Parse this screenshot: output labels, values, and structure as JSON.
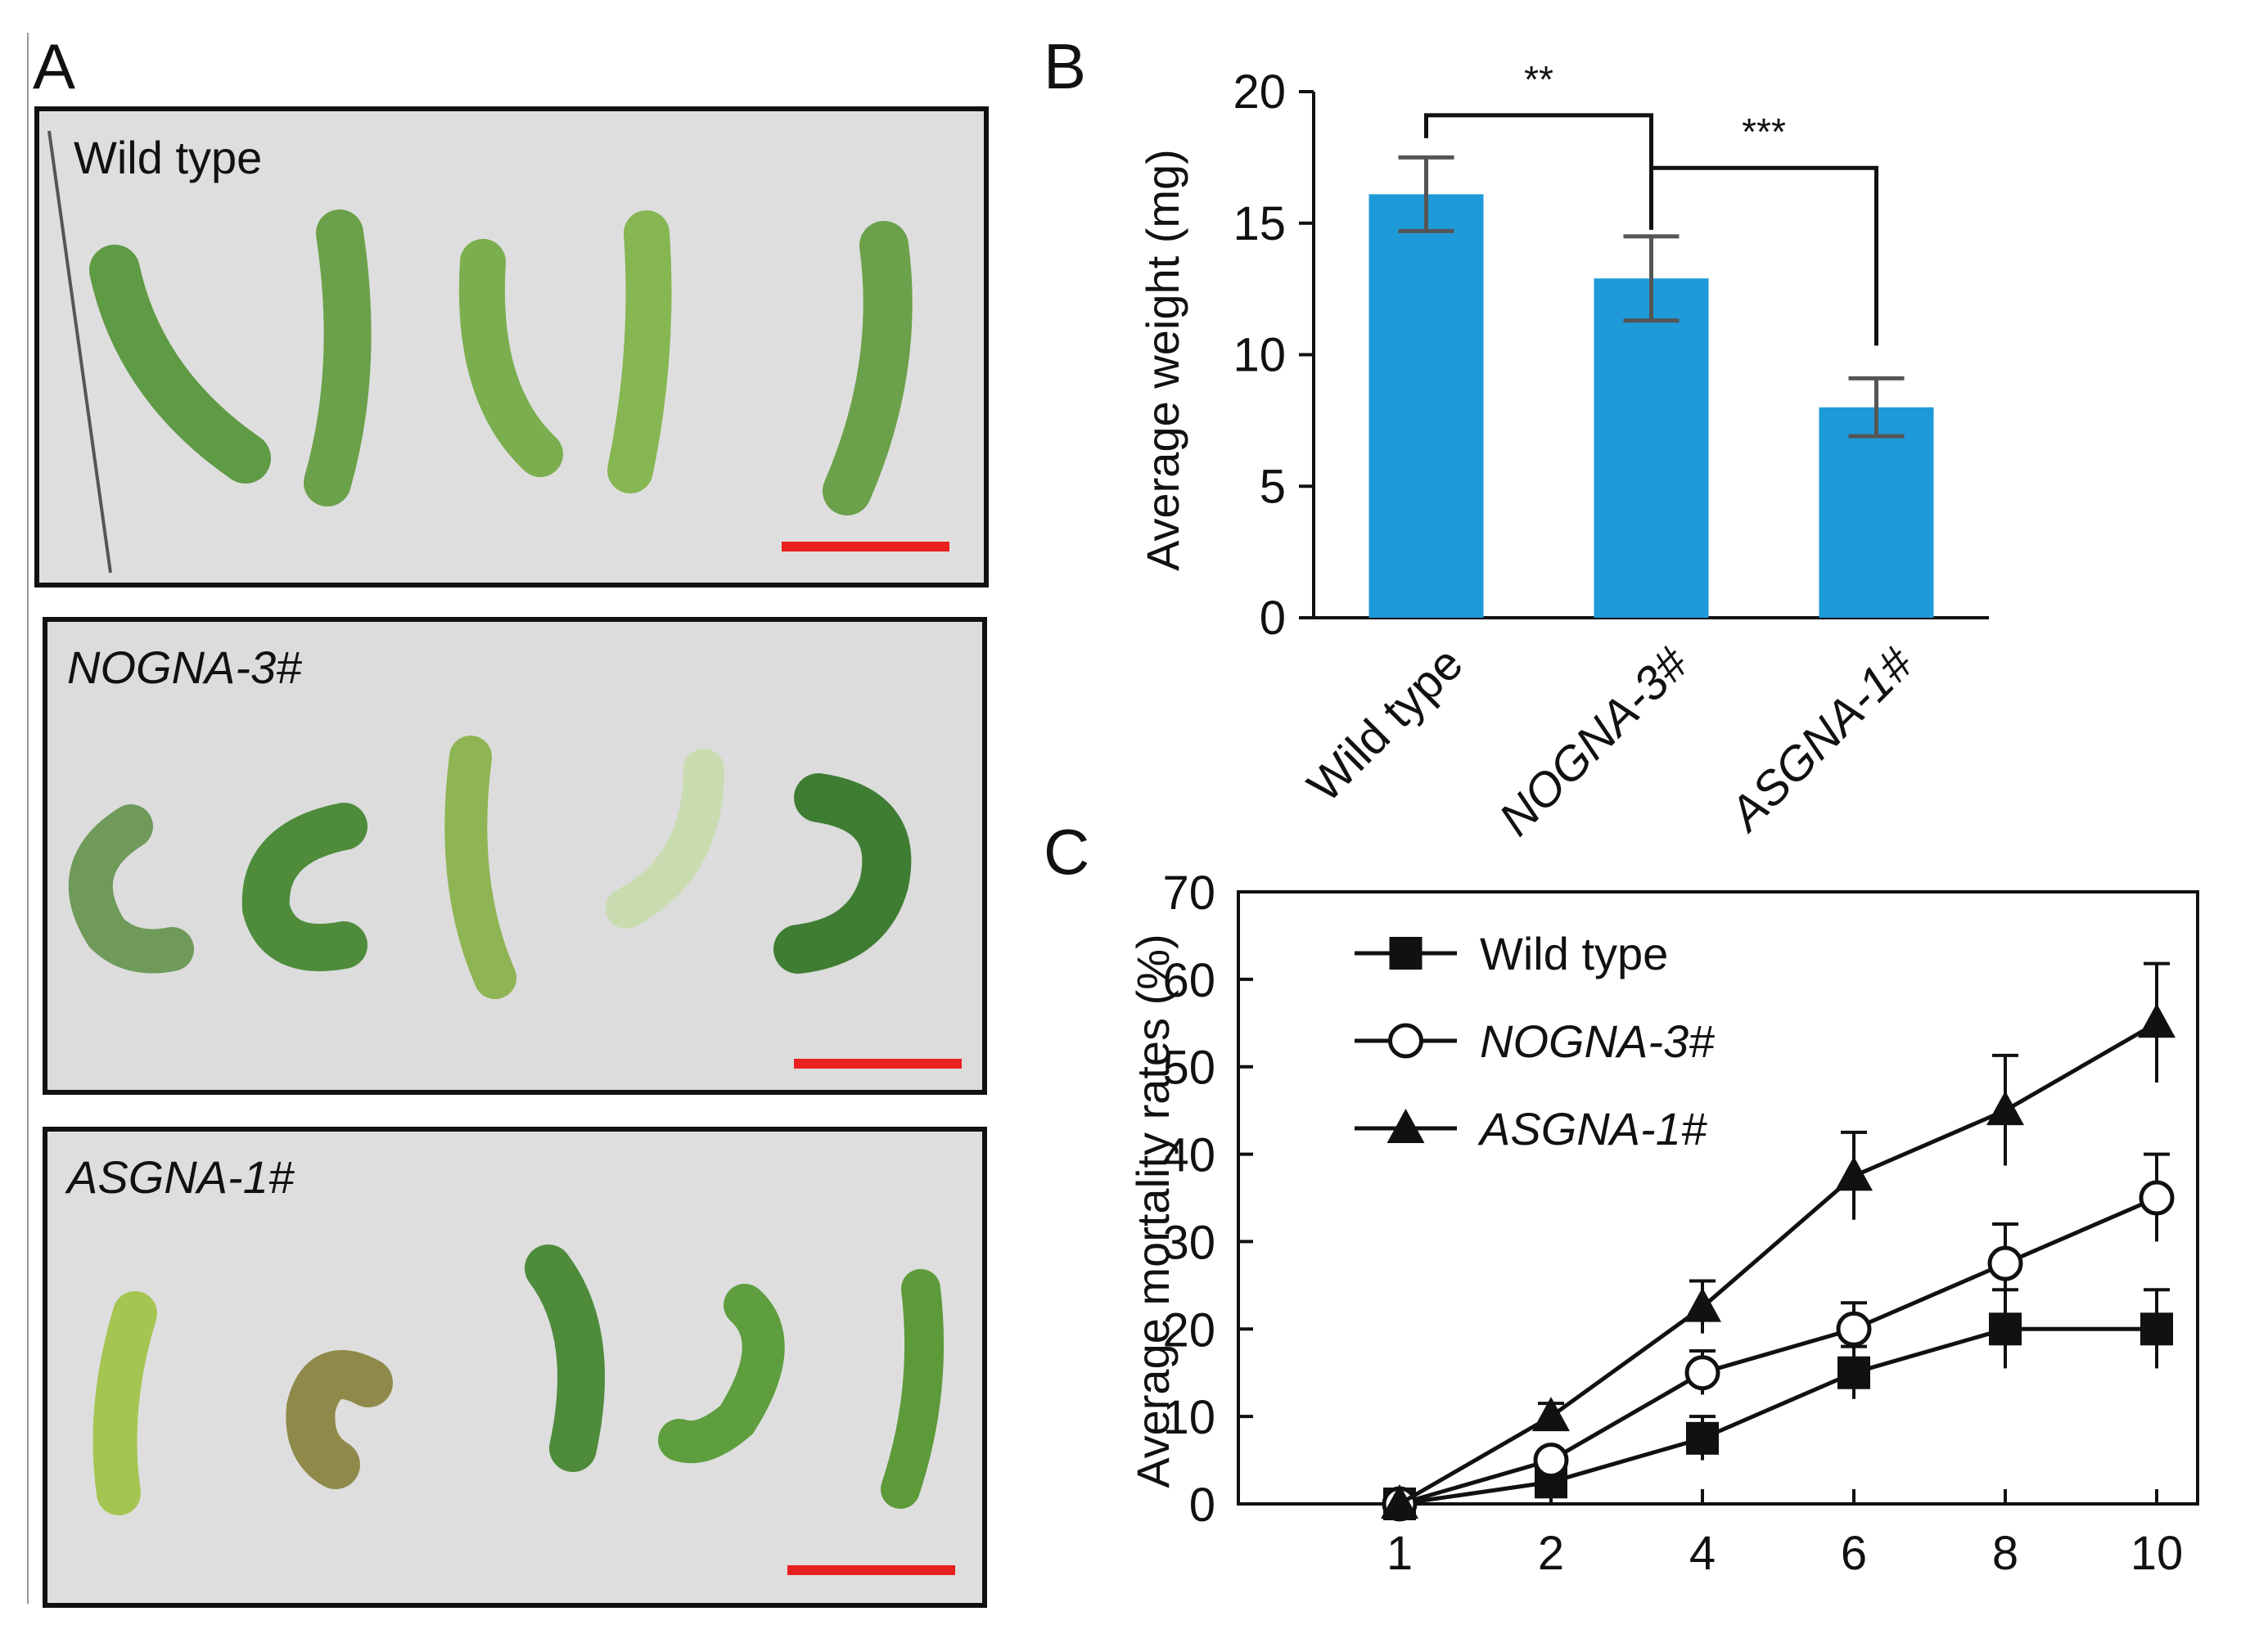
{
  "figure": {
    "panel_labels": [
      "A",
      "B",
      "C"
    ]
  },
  "photos": [
    {
      "label": "Wild type",
      "italic": false
    },
    {
      "label": "NOGNA-3#",
      "italic": true
    },
    {
      "label": "ASGNA-1#",
      "italic": true
    }
  ],
  "colors": {
    "bar": "#1e9ad9",
    "scale_bar": "#e8201e",
    "photo_bg": "#dcdcdc",
    "larva_dark": "#3f7d33",
    "larva_light": "#9cc45a",
    "axis_title_b": "#3a2418"
  },
  "chart_data": [
    {
      "type": "bar",
      "title": "",
      "categories": [
        "Wild type",
        "NOGNA-3#",
        "ASGNA-1#"
      ],
      "italic_categories": [
        false,
        true,
        true
      ],
      "values": [
        16.1,
        12.9,
        8.0
      ],
      "errors": [
        1.4,
        1.6,
        1.1
      ],
      "xlabel": "",
      "ylabel": "Average weight (mg)",
      "ylim": [
        0,
        20
      ],
      "yticks": [
        "0",
        "5",
        "10",
        "15",
        "20"
      ],
      "significance": [
        {
          "from": "Wild type",
          "to": "NOGNA-3#",
          "label": "**"
        },
        {
          "from": "NOGNA-3#",
          "to": "ASGNA-1#",
          "label": "***"
        }
      ],
      "grid": false
    },
    {
      "type": "line",
      "title": "",
      "x": [
        1,
        2,
        4,
        6,
        8,
        10
      ],
      "xticks": [
        "1",
        "2",
        "4",
        "6",
        "8",
        "10"
      ],
      "ylim": [
        0,
        70
      ],
      "yticks": [
        "0",
        "10",
        "20",
        "30",
        "40",
        "50",
        "60",
        "70"
      ],
      "xlabel": "",
      "ylabel": "Average mortality rates (%)",
      "legend_position": "top-left",
      "grid": false,
      "series": [
        {
          "name": "Wild type",
          "italic": false,
          "marker": "square",
          "values": [
            0,
            2.5,
            7.5,
            15,
            20,
            20
          ],
          "errors": [
            0,
            0,
            2.5,
            3.0,
            4.5,
            4.5
          ]
        },
        {
          "name": "NOGNA-3#",
          "italic": true,
          "marker": "circle",
          "values": [
            0,
            5,
            15,
            20,
            27.5,
            35
          ],
          "errors": [
            0,
            0,
            2.5,
            3.0,
            4.5,
            5.0
          ]
        },
        {
          "name": "ASGNA-1#",
          "italic": true,
          "marker": "triangle",
          "values": [
            0,
            10,
            22.5,
            37.5,
            45,
            55
          ],
          "errors": [
            0,
            1.5,
            3.0,
            5.0,
            6.3,
            6.8
          ]
        }
      ]
    }
  ]
}
